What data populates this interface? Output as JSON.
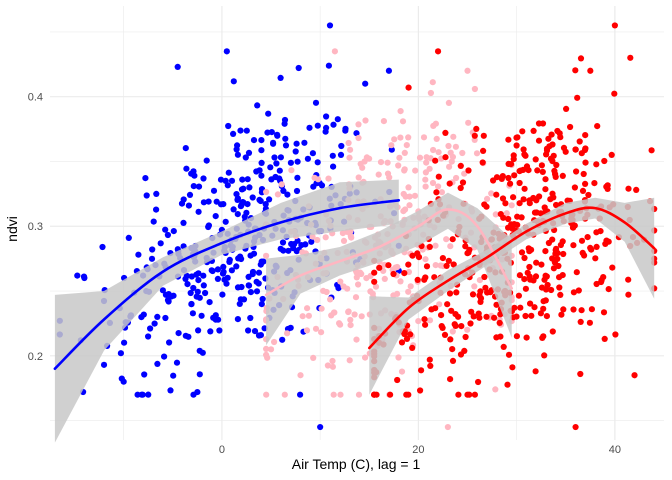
{
  "chart_data": {
    "type": "scatter",
    "xlabel": "Air Temp (C), lag = 1",
    "ylabel": "ndvi",
    "xlim": [
      -17.5,
      45
    ],
    "ylim": [
      0.135,
      0.47
    ],
    "x_ticks": [
      0,
      20,
      40
    ],
    "y_ticks": [
      0.2,
      0.3,
      0.4
    ],
    "x_tick_labels": [
      "0",
      "20",
      "40"
    ],
    "y_tick_labels": [
      "0.2",
      "0.3",
      "0.4"
    ],
    "grid": true,
    "legend": "none",
    "colors": {
      "series_1": "#0000ff",
      "series_2": "#ffb6c1",
      "series_3": "#ff0000",
      "ribbon": "#c8c8c8",
      "grid": "#ebebeb"
    },
    "series": [
      {
        "color": "#0000ff",
        "point_cloud": {
          "x_range": [
            -16.5,
            18
          ],
          "x_mean": 2,
          "x_sd": 6.5,
          "n": 420
        },
        "points": [
          [
            -16.5,
            0.227
          ],
          [
            -10,
            0.18
          ],
          [
            -7.5,
            0.17
          ],
          [
            -4.5,
            0.423
          ],
          [
            -2.5,
            0.172
          ],
          [
            0.5,
            0.435
          ],
          [
            11,
            0.455
          ],
          [
            17,
            0.42
          ],
          [
            10,
            0.145
          ],
          [
            -12,
            0.193
          ],
          [
            -14,
            0.26
          ]
        ],
        "smooth_x": [
          -17,
          -12,
          -6,
          0,
          6,
          12,
          18
        ],
        "smooth_y": [
          0.19,
          0.228,
          0.265,
          0.287,
          0.303,
          0.314,
          0.32
        ],
        "ci_upper": [
          0.247,
          0.25,
          0.276,
          0.296,
          0.318,
          0.334,
          0.336
        ],
        "ci_lower": [
          0.133,
          0.204,
          0.254,
          0.278,
          0.29,
          0.296,
          0.302
        ]
      },
      {
        "color": "#ffb6c1",
        "point_cloud": {
          "x_range": [
            4.5,
            29.5
          ],
          "x_mean": 17,
          "x_sd": 6,
          "n": 330
        },
        "points": [
          [
            11.5,
            0.435
          ],
          [
            23,
            0.145
          ],
          [
            25,
            0.42
          ],
          [
            8,
            0.185
          ],
          [
            29,
            0.31
          ],
          [
            5,
            0.205
          ]
        ],
        "smooth_x": [
          4.5,
          8,
          12,
          16,
          20,
          23,
          26,
          29.5
        ],
        "smooth_y": [
          0.247,
          0.262,
          0.273,
          0.284,
          0.3,
          0.313,
          0.3,
          0.252
        ],
        "ci_upper": [
          0.275,
          0.278,
          0.284,
          0.296,
          0.312,
          0.326,
          0.314,
          0.29
        ],
        "ci_lower": [
          0.208,
          0.248,
          0.262,
          0.272,
          0.285,
          0.298,
          0.282,
          0.214
        ]
      },
      {
        "color": "#ff0000",
        "point_cloud": {
          "x_range": [
            15.5,
            44
          ],
          "x_mean": 30,
          "x_sd": 7,
          "n": 480
        },
        "points": [
          [
            19,
            0.407
          ],
          [
            22,
            0.435
          ],
          [
            36,
            0.145
          ],
          [
            40,
            0.455
          ],
          [
            42,
            0.185
          ],
          [
            37.5,
            0.42
          ],
          [
            16,
            0.21
          ]
        ],
        "smooth_x": [
          15,
          19,
          23,
          27,
          31,
          35,
          38,
          41,
          44
        ],
        "smooth_y": [
          0.206,
          0.237,
          0.258,
          0.276,
          0.296,
          0.31,
          0.314,
          0.303,
          0.283
        ],
        "ci_upper": [
          0.246,
          0.245,
          0.266,
          0.282,
          0.302,
          0.318,
          0.322,
          0.318,
          0.322
        ],
        "ci_lower": [
          0.17,
          0.228,
          0.25,
          0.27,
          0.29,
          0.302,
          0.306,
          0.288,
          0.244
        ]
      }
    ]
  }
}
